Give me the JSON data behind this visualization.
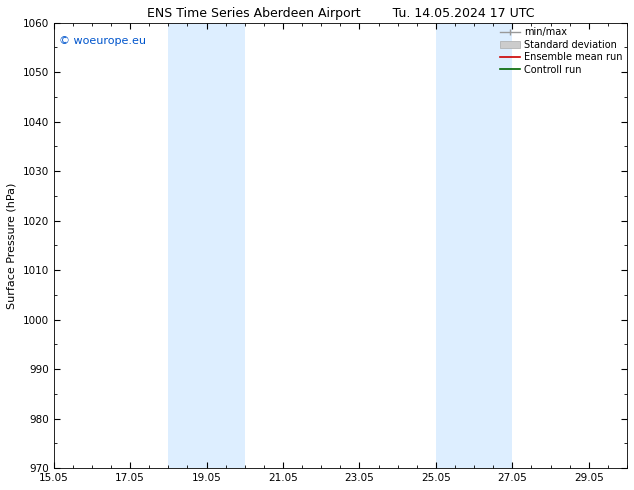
{
  "title_left": "ENS Time Series Aberdeen Airport",
  "title_right": "Tu. 14.05.2024 17 UTC",
  "ylabel": "Surface Pressure (hPa)",
  "ylim": [
    970,
    1060
  ],
  "yticks": [
    970,
    980,
    990,
    1000,
    1010,
    1020,
    1030,
    1040,
    1050,
    1060
  ],
  "xlim": [
    0,
    15
  ],
  "xtick_labels": [
    "15.05",
    "17.05",
    "19.05",
    "21.05",
    "23.05",
    "25.05",
    "27.05",
    "29.05"
  ],
  "xtick_positions": [
    0,
    2,
    4,
    6,
    8,
    10,
    12,
    14
  ],
  "shade_regions": [
    {
      "x_start": 3.0,
      "x_end": 4.0
    },
    {
      "x_start": 3.7,
      "x_end": 5.0
    },
    {
      "x_start": 10.0,
      "x_end": 11.0
    },
    {
      "x_start": 11.0,
      "x_end": 12.0
    }
  ],
  "shade_color": "#ddeeff",
  "background_color": "#ffffff",
  "watermark_text": "© woeurope.eu",
  "watermark_color": "#0055cc",
  "legend_entries": [
    {
      "label": "min/max",
      "color": "#999999",
      "style": "errorbar"
    },
    {
      "label": "Standard deviation",
      "color": "#cccccc",
      "style": "fill"
    },
    {
      "label": "Ensemble mean run",
      "color": "#cc0000",
      "style": "line"
    },
    {
      "label": "Controll run",
      "color": "#006600",
      "style": "line"
    }
  ],
  "grid_color": "#dddddd",
  "tick_direction": "in",
  "title_fontsize": 9,
  "axis_label_fontsize": 8,
  "tick_fontsize": 7.5,
  "legend_fontsize": 7
}
